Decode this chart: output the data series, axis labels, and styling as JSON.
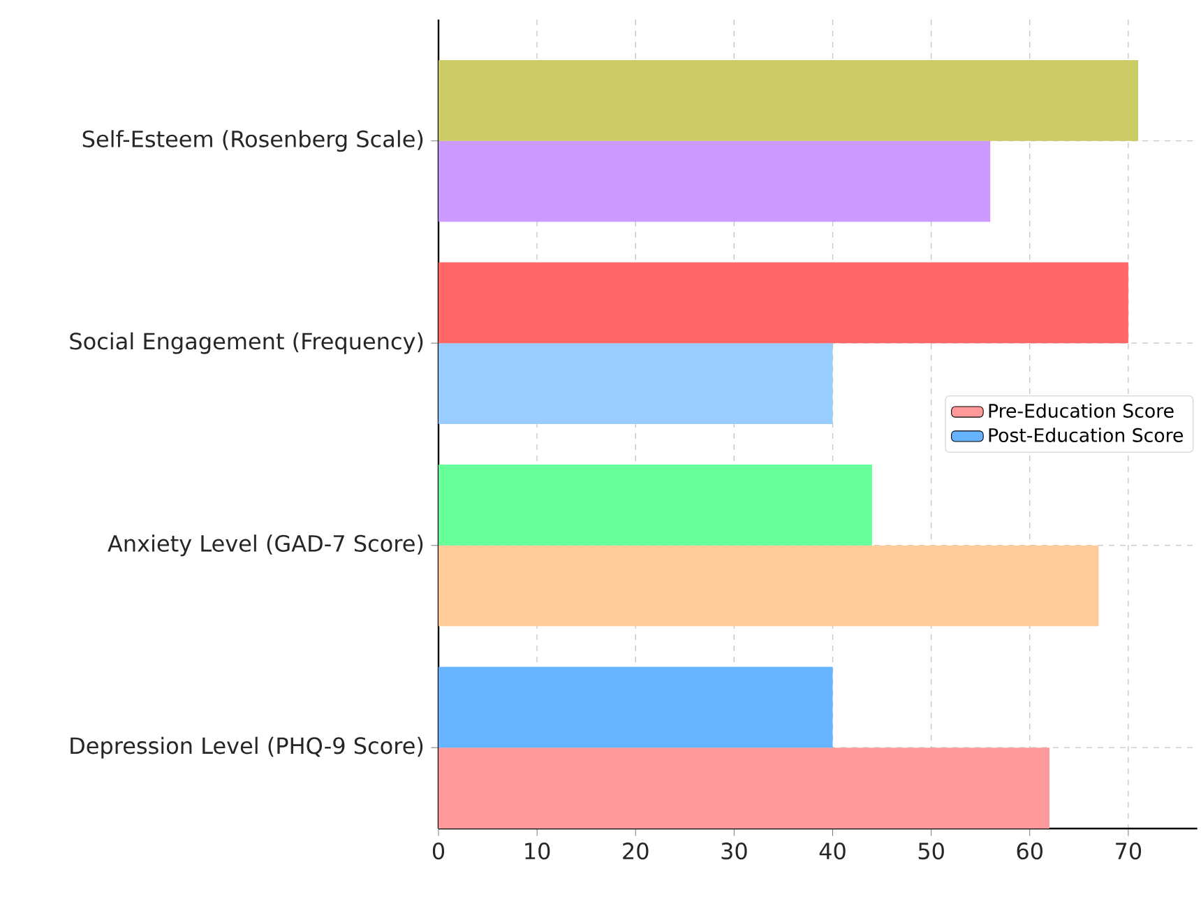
{
  "chart_data": {
    "type": "bar",
    "orientation": "horizontal",
    "categories": [
      "Self-Esteem (Rosenberg Scale)",
      "Social Engagement (Frequency)",
      "Anxiety Level (GAD-7 Score)",
      "Depression Level (PHQ-9 Score)"
    ],
    "series": [
      {
        "name": "Pre-Education Score",
        "color": "#ff9999",
        "colors": [
          "#cc99ff",
          "#99ccff",
          "#ffcc99",
          "#ff9999"
        ],
        "values": [
          56,
          40,
          67,
          62
        ]
      },
      {
        "name": "Post-Education Score",
        "color": "#66b3ff",
        "colors": [
          "#cccc66",
          "#ff6666",
          "#66ff99",
          "#66b3ff"
        ],
        "values": [
          71,
          70,
          44,
          40
        ]
      }
    ],
    "xlim": [
      0,
      77
    ],
    "xticks": [
      0,
      10,
      20,
      30,
      40,
      50,
      60,
      70
    ],
    "grid": true,
    "legend": "right"
  }
}
